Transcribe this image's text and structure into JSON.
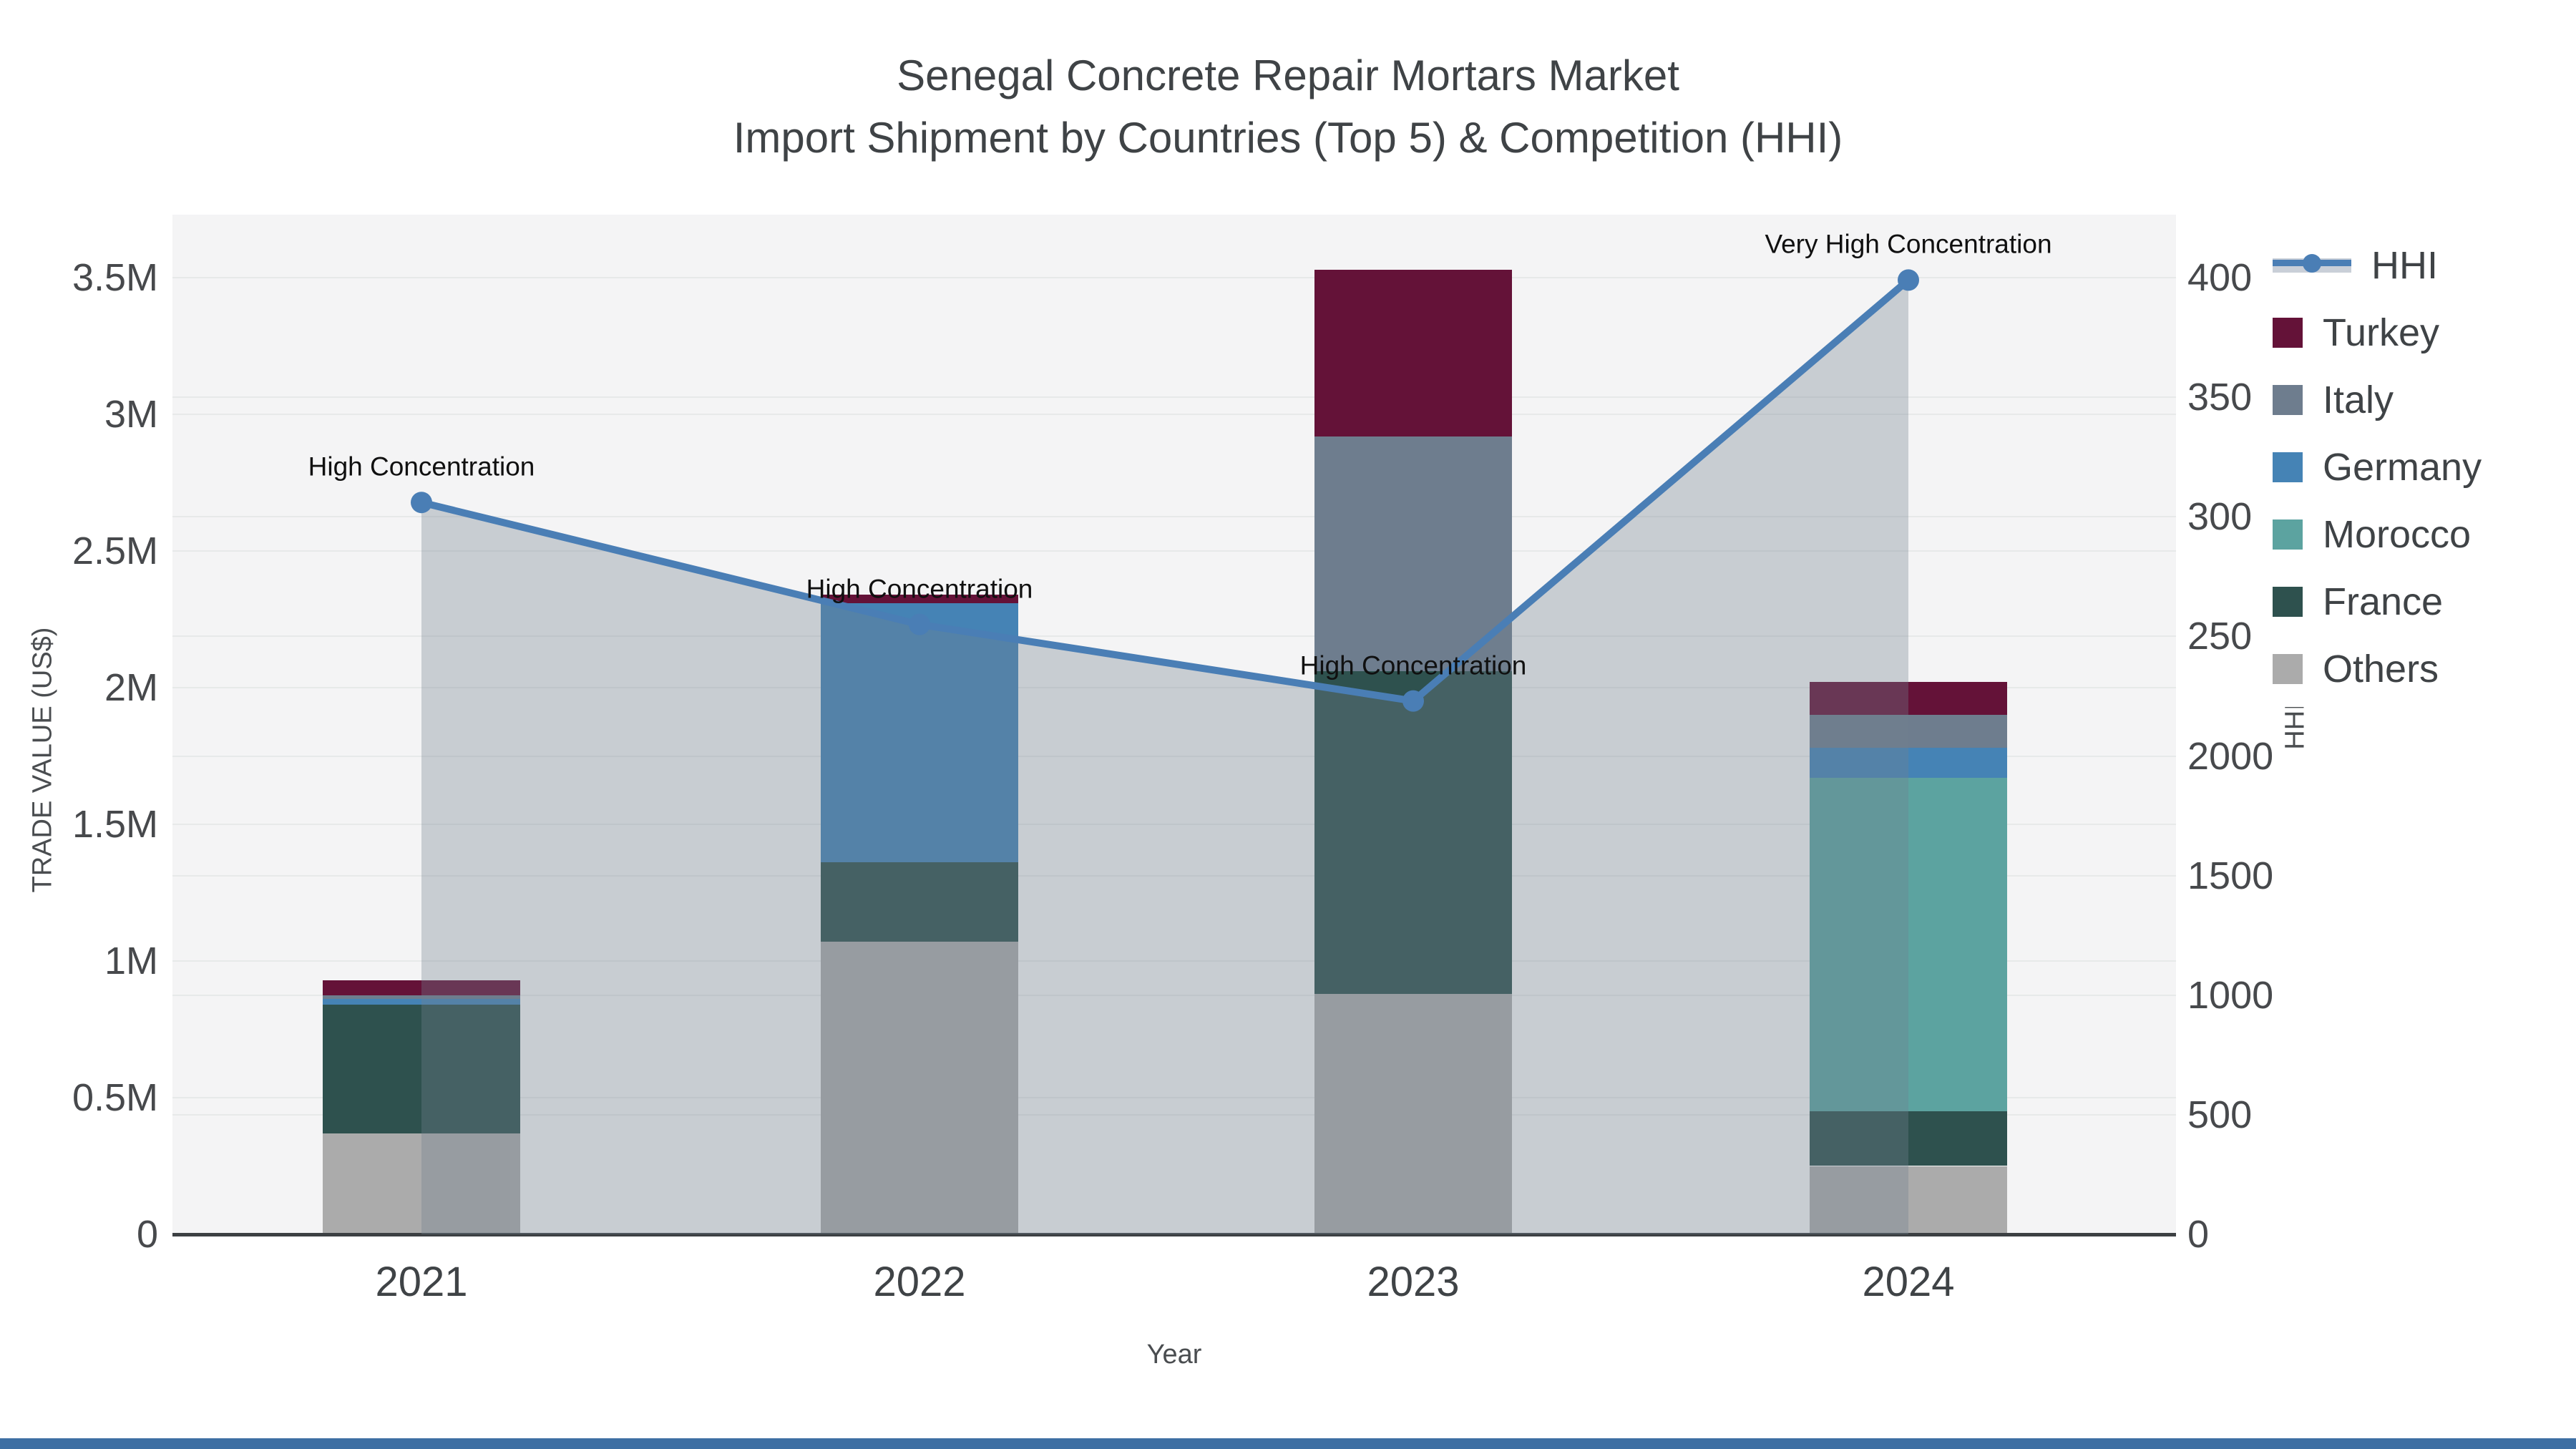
{
  "title": {
    "line1": "Senegal Concrete Repair Mortars Market",
    "line2": "Import Shipment by Countries (Top 5) & Competition (HHI)"
  },
  "footer": {
    "accent_color": "#3e6fa3"
  },
  "chart_data": {
    "type": "bar",
    "subtype": "stacked-bars-with-line",
    "categories": [
      "2021",
      "2022",
      "2023",
      "2024"
    ],
    "units_left": "US$ millions",
    "series": [
      {
        "name": "Others",
        "color": "#ababab",
        "values": [
          0.37,
          1.07,
          0.88,
          0.25
        ]
      },
      {
        "name": "France",
        "color": "#2e514e",
        "values": [
          0.47,
          0.29,
          1.18,
          0.2
        ]
      },
      {
        "name": "Morocco",
        "color": "#5ca3a0",
        "values": [
          0,
          0,
          0,
          1.22
        ]
      },
      {
        "name": "Germany",
        "color": "#4583b5",
        "values": [
          0.02,
          0.95,
          0,
          0.11
        ]
      },
      {
        "name": "Italy",
        "color": "#6e7d8e",
        "values": [
          0.015,
          0,
          0.86,
          0.12
        ]
      },
      {
        "name": "Turkey",
        "color": "#641238",
        "values": [
          0.055,
          0.03,
          0.61,
          0.12
        ]
      }
    ],
    "bar_totals": [
      0.93,
      2.34,
      3.53,
      2.02
    ],
    "line": {
      "name": "HHI",
      "color": "#4a7eb5",
      "area_fill": "rgba(115,130,145,0.34)",
      "values": [
        3060,
        2550,
        2230,
        3990
      ]
    },
    "annotations": [
      "High Concentration",
      "High Concentration",
      "High Concentration",
      "Very High Concentration"
    ],
    "x_axis": {
      "title": "Year"
    },
    "y_left": {
      "title": "TRADE VALUE (US$)",
      "tick_labels": [
        "0",
        "0.5M",
        "1M",
        "1.5M",
        "2M",
        "2.5M",
        "3M",
        "3.5M"
      ],
      "tick_values": [
        0,
        0.5,
        1,
        1.5,
        2,
        2.5,
        3,
        3.5
      ],
      "range": [
        0,
        3.73
      ]
    },
    "y_right": {
      "title": "HHI",
      "tick_labels": [
        "0",
        "500",
        "1000",
        "1500",
        "2000",
        "2500",
        "3000",
        "3500",
        "4000"
      ],
      "tick_values": [
        0,
        500,
        1000,
        1500,
        2000,
        2500,
        3000,
        3500,
        4000
      ],
      "range": [
        0,
        4265
      ]
    },
    "legend": [
      {
        "label": "HHI",
        "type": "line"
      },
      {
        "label": "Turkey",
        "type": "swatch",
        "color": "#641238"
      },
      {
        "label": "Italy",
        "type": "swatch",
        "color": "#6e7d8e"
      },
      {
        "label": "Germany",
        "type": "swatch",
        "color": "#4583b5"
      },
      {
        "label": "Morocco",
        "type": "swatch",
        "color": "#5ca3a0"
      },
      {
        "label": "France",
        "type": "swatch",
        "color": "#2e514e"
      },
      {
        "label": "Others",
        "type": "swatch",
        "color": "#ababab"
      }
    ],
    "grid": true,
    "legend_position": "right"
  }
}
